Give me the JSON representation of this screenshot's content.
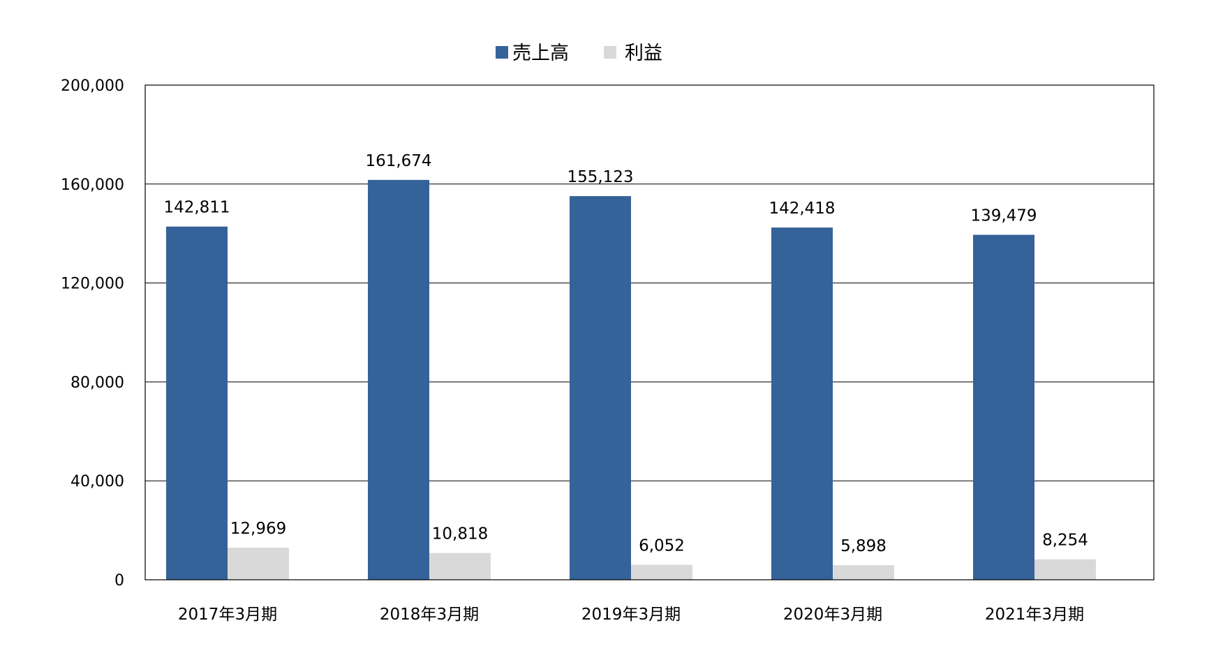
{
  "chart_data": {
    "type": "bar",
    "categories": [
      "2017年3月期",
      "2018年3月期",
      "2019年3月期",
      "2020年3月期",
      "2021年3月期"
    ],
    "series": [
      {
        "name": "売上高",
        "values": [
          142811,
          161674,
          155123,
          142418,
          139479
        ],
        "color": "#356399",
        "labels": [
          "142,811",
          "161,674",
          "155,123",
          "142,418",
          "139,479"
        ]
      },
      {
        "name": "利益",
        "values": [
          12969,
          10818,
          6052,
          5898,
          8254
        ],
        "color": "#d9d9d9",
        "labels": [
          "12,969",
          "10,818",
          "6,052",
          "5,898",
          "8,254"
        ]
      }
    ],
    "ylim": [
      0,
      200000
    ],
    "yticks": [
      0,
      40000,
      80000,
      120000,
      160000,
      200000
    ],
    "ytick_labels": [
      "0",
      "40,000",
      "80,000",
      "120,000",
      "160,000",
      "200,000"
    ],
    "legend_position": "top-center",
    "grid": true
  }
}
